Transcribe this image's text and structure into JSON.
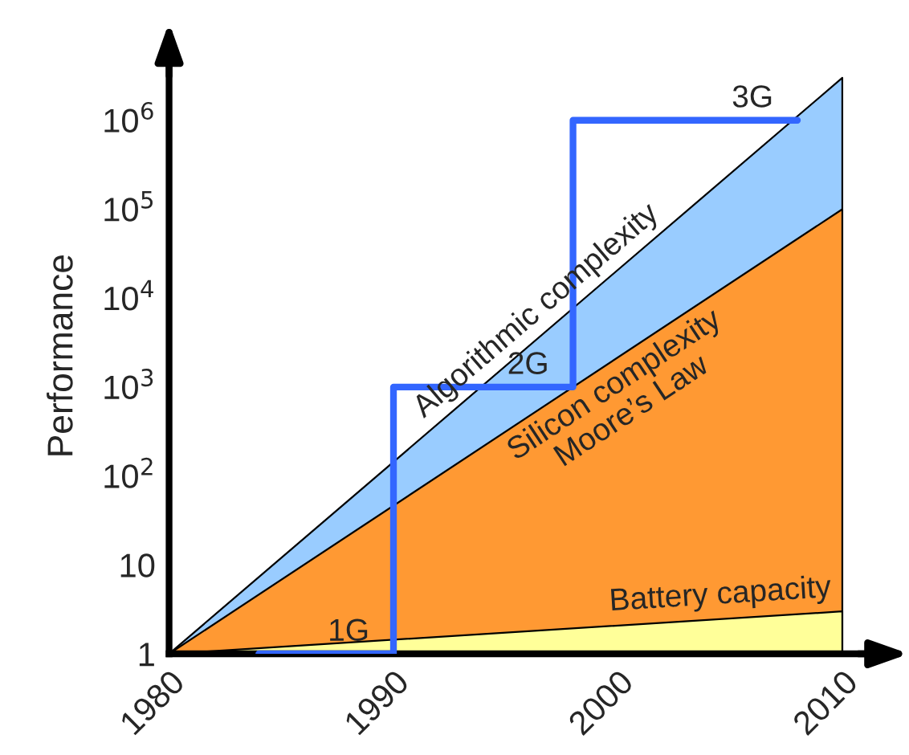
{
  "chart_data": {
    "type": "area",
    "ylabel": "Performance",
    "log": "y",
    "grid": false,
    "legend": false,
    "xlim": [
      1980,
      2012
    ],
    "xticks": [
      1980,
      1990,
      2000,
      2010
    ],
    "ylim": [
      1,
      5000000
    ],
    "yticks": [
      1,
      10,
      {
        "value": 100,
        "label": "10$^{2}$"
      },
      {
        "value": 1000,
        "label": "10$^{3}$"
      },
      {
        "value": 10000,
        "label": "10$^{4}$"
      },
      {
        "value": 100000,
        "label": "10$^{5}$"
      },
      {
        "value": 1000000,
        "label": "10$^{6}$"
      }
    ],
    "series": [
      {
        "name": "Algorithmic complexity",
        "color": "#99ccff",
        "x": [
          1980,
          2010
        ],
        "values": [
          1,
          3000000
        ]
      },
      {
        "name": "Silicon complexity\nMoore’s Law",
        "color": "#ff9933",
        "x": [
          1980,
          2010
        ],
        "values": [
          1,
          100000
        ]
      },
      {
        "name": "Battery capacity",
        "color": "#ffff99",
        "x": [
          1980,
          2010
        ],
        "values": [
          1,
          3
        ]
      },
      {
        "type": "step",
        "color": "#3366ff",
        "x": [
          1984,
          1990,
          1998,
          2008
        ],
        "values": [
          1,
          1000,
          1000000,
          1000000
        ]
      }
    ],
    "annotations": [
      {
        "text": "1G",
        "x": 1988,
        "y": 1
      },
      {
        "text": "2G",
        "x": 1996,
        "y": 1000
      },
      {
        "text": "3G",
        "x": 2006,
        "y": 1000000
      }
    ]
  }
}
